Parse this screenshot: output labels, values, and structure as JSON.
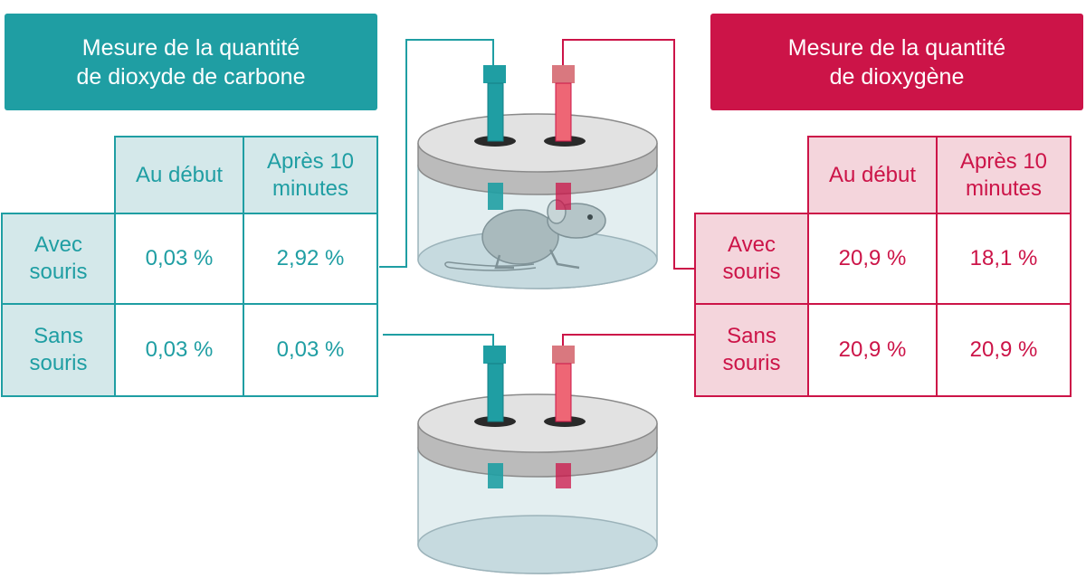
{
  "colors": {
    "co2_accent": "#1f9ea3",
    "co2_light": "#d4e8ea",
    "o2_accent": "#cc1448",
    "o2_light": "#f4d5dc"
  },
  "co2": {
    "title_line1": "Mesure de la quantité",
    "title_line2": "de dioxyde de carbone",
    "col_start": "Au début",
    "col_after_line1": "Après 10",
    "col_after_line2": "minutes",
    "rows": [
      {
        "label_line1": "Avec",
        "label_line2": "souris",
        "start": "0,03 %",
        "after": "2,92 %"
      },
      {
        "label_line1": "Sans",
        "label_line2": "souris",
        "start": "0,03 %",
        "after": "0,03 %"
      }
    ]
  },
  "o2": {
    "title_line1": "Mesure de la quantité",
    "title_line2": "de dioxygène",
    "col_start": "Au début",
    "col_after_line1": "Après 10",
    "col_after_line2": "minutes",
    "rows": [
      {
        "label_line1": "Avec",
        "label_line2": "souris",
        "start": "20,9 %",
        "after": "18,1 %"
      },
      {
        "label_line1": "Sans",
        "label_line2": "souris",
        "start": "20,9 %",
        "after": "20,9 %"
      }
    ]
  },
  "icons": [
    "co2-sensor-icon",
    "o2-sensor-icon",
    "mouse-icon",
    "container-icon"
  ]
}
